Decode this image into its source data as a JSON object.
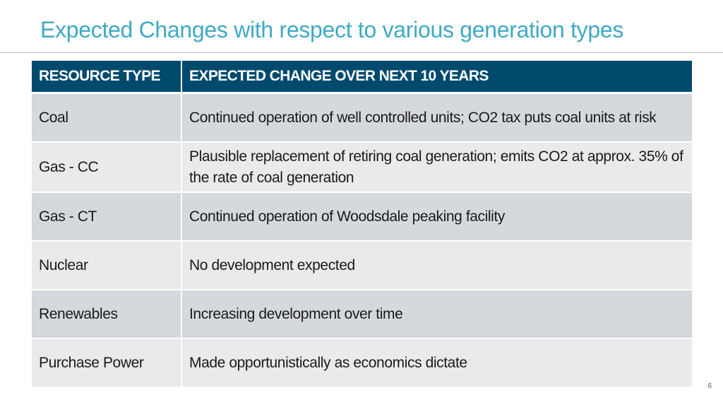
{
  "title": "Expected Changes with respect to various generation types",
  "table": {
    "headers": [
      "RESOURCE TYPE",
      "EXPECTED CHANGE OVER NEXT 10 YEARS"
    ],
    "rows": [
      {
        "resource": "Coal",
        "change": "Continued operation of well controlled units; CO2 tax puts coal units at risk"
      },
      {
        "resource": "Gas - CC",
        "change": "Plausible replacement of retiring coal generation; emits CO2 at approx. 35% of the rate of coal generation"
      },
      {
        "resource": "Gas - CT",
        "change": "Continued operation of Woodsdale peaking facility"
      },
      {
        "resource": "Nuclear",
        "change": "No development expected"
      },
      {
        "resource": "Renewables",
        "change": "Increasing development over time"
      },
      {
        "resource": "Purchase Power",
        "change": "Made opportunistically as economics dictate"
      }
    ]
  },
  "page_number": "6",
  "colors": {
    "title": "#3fa9c4",
    "header_bg": "#004a6e",
    "row_dark": "#d5d8dc",
    "row_light": "#e9eaec"
  }
}
